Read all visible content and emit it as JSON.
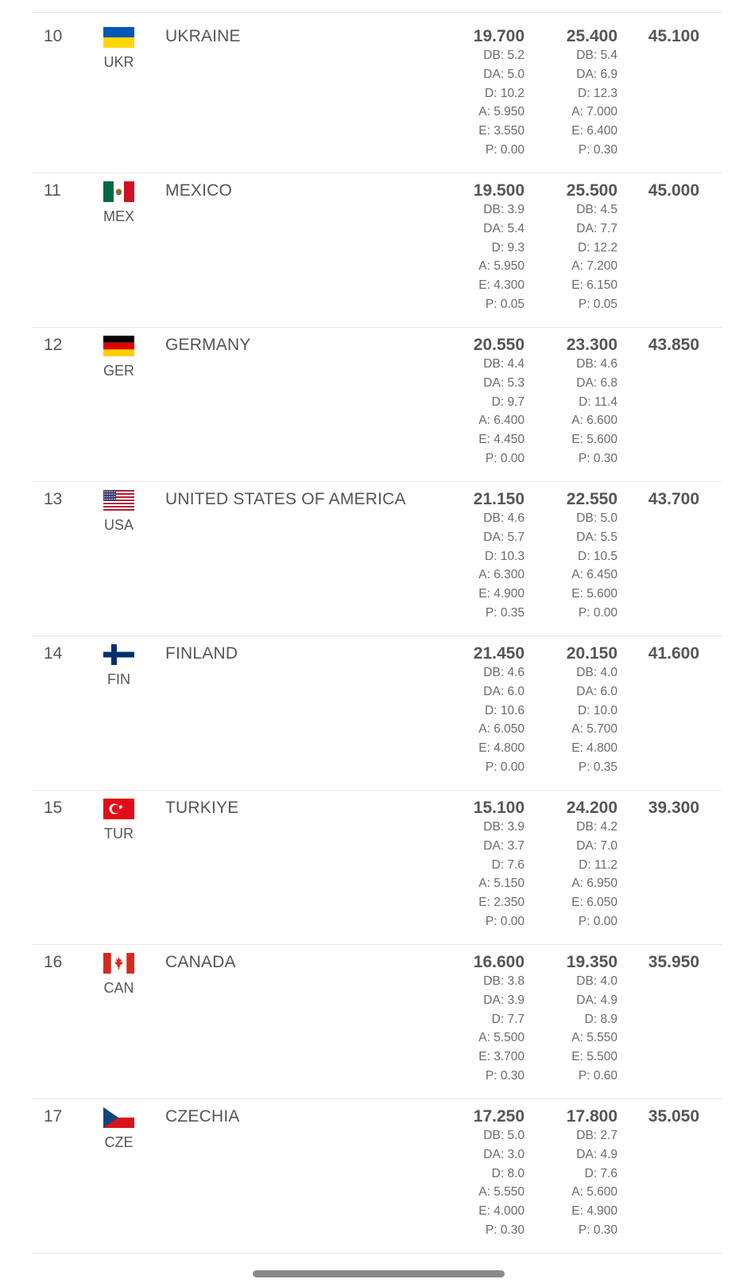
{
  "rows": [
    {
      "rank": "10",
      "code": "UKR",
      "country": "UKRAINE",
      "flag": "ukr-flag-icon",
      "score1": "19.700",
      "sub1": [
        "DB: 5.2",
        "DA: 5.0",
        "D: 10.2",
        "A: 5.950",
        "E: 3.550",
        "P: 0.00"
      ],
      "score2": "25.400",
      "sub2": [
        "DB: 5.4",
        "DA: 6.9",
        "D: 12.3",
        "A: 7.000",
        "E: 6.400",
        "P: 0.30"
      ],
      "total": "45.100"
    },
    {
      "rank": "11",
      "code": "MEX",
      "country": "MEXICO",
      "flag": "mex-flag-icon",
      "score1": "19.500",
      "sub1": [
        "DB: 3.9",
        "DA: 5.4",
        "D: 9.3",
        "A: 5.950",
        "E: 4.300",
        "P: 0.05"
      ],
      "score2": "25.500",
      "sub2": [
        "DB: 4.5",
        "DA: 7.7",
        "D: 12.2",
        "A: 7.200",
        "E: 6.150",
        "P: 0.05"
      ],
      "total": "45.000"
    },
    {
      "rank": "12",
      "code": "GER",
      "country": "GERMANY",
      "flag": "ger-flag-icon",
      "score1": "20.550",
      "sub1": [
        "DB: 4.4",
        "DA: 5.3",
        "D: 9.7",
        "A: 6.400",
        "E: 4.450",
        "P: 0.00"
      ],
      "score2": "23.300",
      "sub2": [
        "DB: 4.6",
        "DA: 6.8",
        "D: 11.4",
        "A: 6.600",
        "E: 5.600",
        "P: 0.30"
      ],
      "total": "43.850"
    },
    {
      "rank": "13",
      "code": "USA",
      "country": "UNITED STATES OF AMERICA",
      "flag": "usa-flag-icon",
      "score1": "21.150",
      "sub1": [
        "DB: 4.6",
        "DA: 5.7",
        "D: 10.3",
        "A: 6.300",
        "E: 4.900",
        "P: 0.35"
      ],
      "score2": "22.550",
      "sub2": [
        "DB: 5.0",
        "DA: 5.5",
        "D: 10.5",
        "A: 6.450",
        "E: 5.600",
        "P: 0.00"
      ],
      "total": "43.700"
    },
    {
      "rank": "14",
      "code": "FIN",
      "country": "FINLAND",
      "flag": "fin-flag-icon",
      "score1": "21.450",
      "sub1": [
        "DB: 4.6",
        "DA: 6.0",
        "D: 10.6",
        "A: 6.050",
        "E: 4.800",
        "P: 0.00"
      ],
      "score2": "20.150",
      "sub2": [
        "DB: 4.0",
        "DA: 6.0",
        "D: 10.0",
        "A: 5.700",
        "E: 4.800",
        "P: 0.35"
      ],
      "total": "41.600"
    },
    {
      "rank": "15",
      "code": "TUR",
      "country": "TURKIYE",
      "flag": "tur-flag-icon",
      "score1": "15.100",
      "sub1": [
        "DB: 3.9",
        "DA: 3.7",
        "D: 7.6",
        "A: 5.150",
        "E: 2.350",
        "P: 0.00"
      ],
      "score2": "24.200",
      "sub2": [
        "DB: 4.2",
        "DA: 7.0",
        "D: 11.2",
        "A: 6.950",
        "E: 6.050",
        "P: 0.00"
      ],
      "total": "39.300"
    },
    {
      "rank": "16",
      "code": "CAN",
      "country": "CANADA",
      "flag": "can-flag-icon",
      "score1": "16.600",
      "sub1": [
        "DB: 3.8",
        "DA: 3.9",
        "D: 7.7",
        "A: 5.500",
        "E: 3.700",
        "P: 0.30"
      ],
      "score2": "19.350",
      "sub2": [
        "DB: 4.0",
        "DA: 4.9",
        "D: 8.9",
        "A: 5.550",
        "E: 5.500",
        "P: 0.60"
      ],
      "total": "35.950"
    },
    {
      "rank": "17",
      "code": "CZE",
      "country": "CZECHIA",
      "flag": "cze-flag-icon",
      "score1": "17.250",
      "sub1": [
        "DB: 5.0",
        "DA: 3.0",
        "D: 8.0",
        "A: 5.550",
        "E: 4.000",
        "P: 0.30"
      ],
      "score2": "17.800",
      "sub2": [
        "DB: 2.7",
        "DA: 4.9",
        "D: 7.6",
        "A: 5.600",
        "E: 4.900",
        "P: 0.30"
      ],
      "total": "35.050"
    }
  ]
}
